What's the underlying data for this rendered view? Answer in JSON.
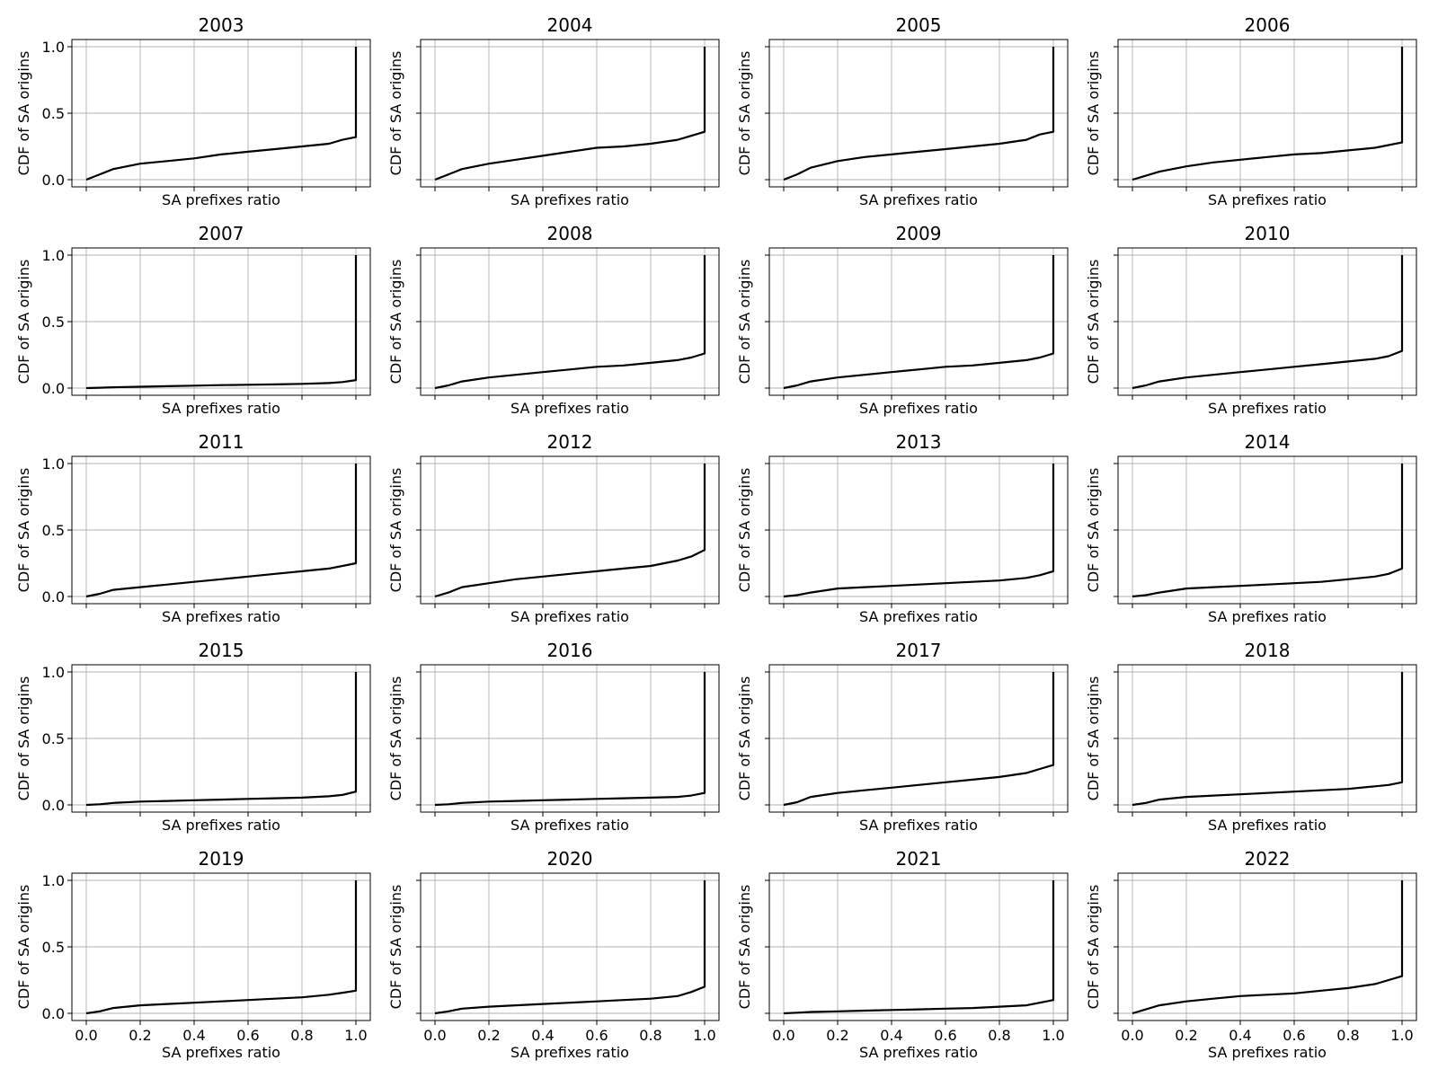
{
  "colors": {
    "line": "#000000",
    "grid": "#b0b0b0",
    "background": "#ffffff"
  },
  "chart_data": {
    "type": "line",
    "layout": "grid 5 rows x 4 columns, shared axes",
    "xlabel": "SA prefixes ratio",
    "ylabel": "CDF of SA origins",
    "xlim": [
      0.0,
      1.0
    ],
    "ylim": [
      0.0,
      1.0
    ],
    "xticks": [
      "0.0",
      "0.2",
      "0.4",
      "0.6",
      "0.8",
      "1.0"
    ],
    "yticks": [
      "0.0",
      "0.5",
      "1.0"
    ],
    "grid": true,
    "x": [
      0.0,
      0.05,
      0.1,
      0.2,
      0.3,
      0.4,
      0.5,
      0.6,
      0.7,
      0.8,
      0.9,
      0.95,
      1.0,
      1.0
    ],
    "panels": [
      {
        "title": "2003",
        "values": [
          0.0,
          0.04,
          0.08,
          0.12,
          0.14,
          0.16,
          0.19,
          0.21,
          0.23,
          0.25,
          0.27,
          0.3,
          0.32,
          1.0
        ]
      },
      {
        "title": "2004",
        "values": [
          0.0,
          0.04,
          0.08,
          0.12,
          0.15,
          0.18,
          0.21,
          0.24,
          0.25,
          0.27,
          0.3,
          0.33,
          0.36,
          1.0
        ]
      },
      {
        "title": "2005",
        "values": [
          0.0,
          0.04,
          0.09,
          0.14,
          0.17,
          0.19,
          0.21,
          0.23,
          0.25,
          0.27,
          0.3,
          0.34,
          0.36,
          1.0
        ]
      },
      {
        "title": "2006",
        "values": [
          0.0,
          0.03,
          0.06,
          0.1,
          0.13,
          0.15,
          0.17,
          0.19,
          0.2,
          0.22,
          0.24,
          0.26,
          0.28,
          1.0
        ]
      },
      {
        "title": "2007",
        "values": [
          0.0,
          0.003,
          0.006,
          0.01,
          0.014,
          0.018,
          0.022,
          0.025,
          0.028,
          0.032,
          0.038,
          0.045,
          0.06,
          1.0
        ]
      },
      {
        "title": "2008",
        "values": [
          0.0,
          0.02,
          0.05,
          0.08,
          0.1,
          0.12,
          0.14,
          0.16,
          0.17,
          0.19,
          0.21,
          0.23,
          0.26,
          1.0
        ]
      },
      {
        "title": "2009",
        "values": [
          0.0,
          0.02,
          0.05,
          0.08,
          0.1,
          0.12,
          0.14,
          0.16,
          0.17,
          0.19,
          0.21,
          0.23,
          0.26,
          1.0
        ]
      },
      {
        "title": "2010",
        "values": [
          0.0,
          0.02,
          0.05,
          0.08,
          0.1,
          0.12,
          0.14,
          0.16,
          0.18,
          0.2,
          0.22,
          0.24,
          0.28,
          1.0
        ]
      },
      {
        "title": "2011",
        "values": [
          0.0,
          0.02,
          0.05,
          0.07,
          0.09,
          0.11,
          0.13,
          0.15,
          0.17,
          0.19,
          0.21,
          0.23,
          0.25,
          1.0
        ]
      },
      {
        "title": "2012",
        "values": [
          0.0,
          0.03,
          0.07,
          0.1,
          0.13,
          0.15,
          0.17,
          0.19,
          0.21,
          0.23,
          0.27,
          0.3,
          0.35,
          1.0
        ]
      },
      {
        "title": "2013",
        "values": [
          0.0,
          0.01,
          0.03,
          0.06,
          0.07,
          0.08,
          0.09,
          0.1,
          0.11,
          0.12,
          0.14,
          0.16,
          0.19,
          1.0
        ]
      },
      {
        "title": "2014",
        "values": [
          0.0,
          0.01,
          0.03,
          0.06,
          0.07,
          0.08,
          0.09,
          0.1,
          0.11,
          0.13,
          0.15,
          0.17,
          0.21,
          1.0
        ]
      },
      {
        "title": "2015",
        "values": [
          0.0,
          0.005,
          0.015,
          0.025,
          0.03,
          0.035,
          0.04,
          0.045,
          0.05,
          0.055,
          0.065,
          0.075,
          0.1,
          1.0
        ]
      },
      {
        "title": "2016",
        "values": [
          0.0,
          0.005,
          0.015,
          0.025,
          0.03,
          0.035,
          0.04,
          0.045,
          0.05,
          0.055,
          0.06,
          0.07,
          0.09,
          1.0
        ]
      },
      {
        "title": "2017",
        "values": [
          0.0,
          0.02,
          0.06,
          0.09,
          0.11,
          0.13,
          0.15,
          0.17,
          0.19,
          0.21,
          0.24,
          0.27,
          0.3,
          1.0
        ]
      },
      {
        "title": "2018",
        "values": [
          0.0,
          0.015,
          0.04,
          0.06,
          0.07,
          0.08,
          0.09,
          0.1,
          0.11,
          0.12,
          0.14,
          0.15,
          0.17,
          1.0
        ]
      },
      {
        "title": "2019",
        "values": [
          0.0,
          0.015,
          0.04,
          0.06,
          0.07,
          0.08,
          0.09,
          0.1,
          0.11,
          0.12,
          0.14,
          0.155,
          0.17,
          1.0
        ]
      },
      {
        "title": "2020",
        "values": [
          0.0,
          0.015,
          0.035,
          0.05,
          0.06,
          0.07,
          0.08,
          0.09,
          0.1,
          0.11,
          0.13,
          0.16,
          0.2,
          1.0
        ]
      },
      {
        "title": "2021",
        "values": [
          0.0,
          0.005,
          0.01,
          0.015,
          0.02,
          0.025,
          0.03,
          0.035,
          0.04,
          0.05,
          0.06,
          0.08,
          0.1,
          1.0
        ]
      },
      {
        "title": "2022",
        "values": [
          0.0,
          0.03,
          0.06,
          0.09,
          0.11,
          0.13,
          0.14,
          0.15,
          0.17,
          0.19,
          0.22,
          0.25,
          0.28,
          1.0
        ]
      }
    ]
  }
}
